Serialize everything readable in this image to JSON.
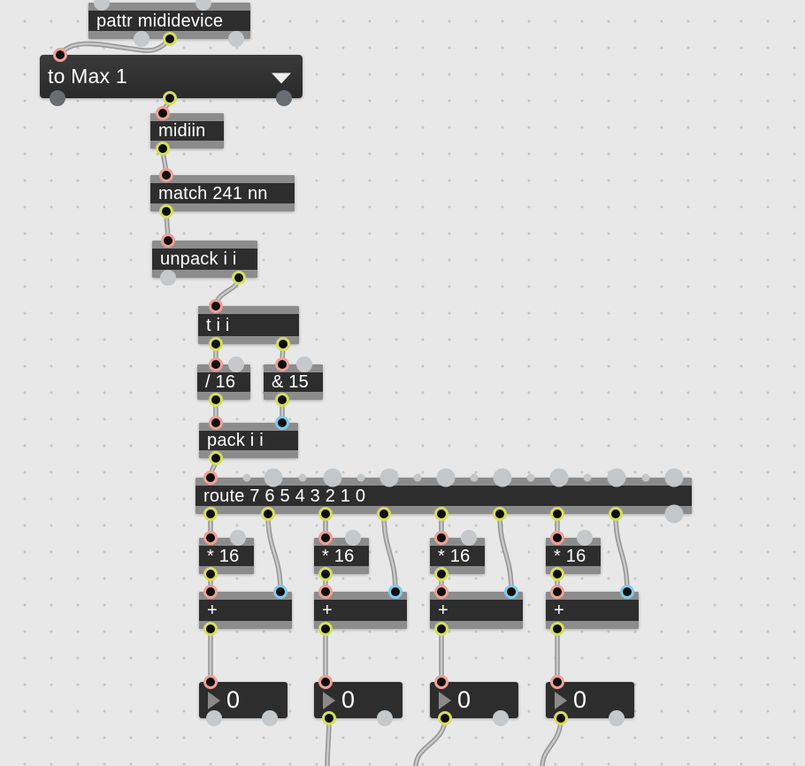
{
  "app": {
    "name": "Max patcher canvas"
  },
  "objects": {
    "pattr": "pattr mididevice",
    "umenu_selected": "to Max 1",
    "midiin": "midiin",
    "match": "match 241 nn",
    "unpack": "unpack i i",
    "trigger": "t i i",
    "divide": "/ 16",
    "bitand": "& 15",
    "pack": "pack i i",
    "route": "route 7 6 5 4 3 2 1 0",
    "multiply": "* 16",
    "plus": "+"
  },
  "number_boxes": {
    "values": [
      "0",
      "0",
      "0",
      "0"
    ]
  },
  "icons": {
    "umenu_arrow": "dropdown-arrow",
    "number_triangle": "int-number-box-arrow"
  },
  "colors": {
    "background": "#e8e8e8",
    "grid_dot": "#c6c6c6",
    "box_body": "#2d2d2d",
    "box_strip": "#8c8c8c",
    "hot_inlet_ring": "#efa097",
    "cold_inlet_ring": "#7fcde8",
    "outlet_ring": "#d6de5b",
    "unconnected_port": "#c5c9cc",
    "cord_outer": "#969696",
    "cord_inner": "#c9c9c9",
    "text": "#ffffff"
  }
}
